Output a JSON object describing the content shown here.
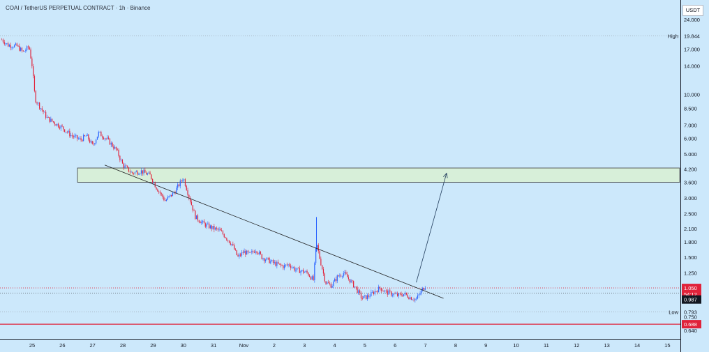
{
  "header": {
    "symbol": "COAI / TetherUS PERPETUAL CONTRACT",
    "sep": " · ",
    "interval": "1h",
    "exchange": "Binance"
  },
  "price_scale": {
    "unit": "USDT",
    "scale": "log"
  },
  "colors": {
    "background": "#cce8fb",
    "up": "#2962ff",
    "down": "#e0223a",
    "zone_fill": "#d8f0d2",
    "zone_stroke": "#3a3a3a",
    "trendline": "#1f1f1f",
    "current_price": "#e0223a",
    "low_level": "#e0223a"
  },
  "chart_data": {
    "type": "candlestick",
    "title": "",
    "xlabel": "",
    "ylabel": "",
    "x_ticks": [
      "25",
      "26",
      "27",
      "28",
      "29",
      "30",
      "31",
      "Nov",
      "2",
      "3",
      "4",
      "5",
      "6",
      "7",
      "8",
      "9",
      "10",
      "11",
      "12",
      "13",
      "14",
      "15"
    ],
    "y_ticks": [
      24.0,
      17.0,
      14.0,
      10.0,
      8.5,
      7.0,
      6.0,
      5.0,
      4.2,
      3.6,
      3.0,
      2.5,
      2.1,
      1.8,
      1.5,
      1.25,
      0.75,
      0.64
    ],
    "y_tick_labels": [
      "24.000",
      "17.000",
      "14.000",
      "10.000",
      "8.500",
      "7.000",
      "6.000",
      "5.000",
      "4.200",
      "3.600",
      "3.000",
      "2.500",
      "2.100",
      "1.800",
      "1.500",
      "1.250",
      "0.750",
      "0.640"
    ],
    "ylim": [
      0.6,
      27
    ],
    "y_scale": "log",
    "xlim": [
      24.1,
      15.9
    ],
    "grid": false,
    "high": {
      "label": "High",
      "value": 19.844,
      "value_label": "19.844"
    },
    "low": {
      "label": "Low",
      "value": 0.793,
      "value_label": "0.793"
    },
    "current_price": {
      "value": 1.05,
      "value_label": "1.050",
      "countdown": "54:12"
    },
    "level_987": {
      "value": 0.987,
      "value_label": "0.987"
    },
    "support_line": {
      "value": 0.688,
      "value_label": "0.688"
    },
    "zone": {
      "x_start": 26.5,
      "x_end": 15.9,
      "y_low": 3.6,
      "y_high": 4.25
    },
    "trendline": {
      "x1": 27.4,
      "y1": 4.4,
      "x2": 7.6,
      "y2": 0.93
    },
    "projection_arrow": {
      "x1": 6.7,
      "y1": 1.12,
      "x2": 7.7,
      "y2": 4.0
    },
    "price_path": [
      [
        24.0,
        19.0
      ],
      [
        24.2,
        17.8
      ],
      [
        24.5,
        17.6
      ],
      [
        24.7,
        16.4
      ],
      [
        24.9,
        17.5
      ],
      [
        25.0,
        14.0
      ],
      [
        25.1,
        9.5
      ],
      [
        25.3,
        8.5
      ],
      [
        25.5,
        7.6
      ],
      [
        25.8,
        7.1
      ],
      [
        26.0,
        6.8
      ],
      [
        26.3,
        6.2
      ],
      [
        26.6,
        5.9
      ],
      [
        26.8,
        6.2
      ],
      [
        27.0,
        5.5
      ],
      [
        27.2,
        6.4
      ],
      [
        27.5,
        5.9
      ],
      [
        27.8,
        5.2
      ],
      [
        28.0,
        4.4
      ],
      [
        28.3,
        4.0
      ],
      [
        28.6,
        4.1
      ],
      [
        28.9,
        3.9
      ],
      [
        29.1,
        3.4
      ],
      [
        29.4,
        2.9
      ],
      [
        29.7,
        3.2
      ],
      [
        30.0,
        3.8
      ],
      [
        30.2,
        3.0
      ],
      [
        30.4,
        2.4
      ],
      [
        30.7,
        2.2
      ],
      [
        31.0,
        2.1
      ],
      [
        31.2,
        2.05
      ],
      [
        31.4,
        1.9
      ],
      [
        31.6,
        1.75
      ],
      [
        31.8,
        1.5
      ],
      [
        32.0,
        1.6
      ],
      [
        32.2,
        1.55
      ],
      [
        32.4,
        1.65
      ],
      [
        32.6,
        1.5
      ],
      [
        32.8,
        1.45
      ],
      [
        33.0,
        1.4
      ],
      [
        33.3,
        1.35
      ],
      [
        33.5,
        1.38
      ],
      [
        33.7,
        1.3
      ],
      [
        33.9,
        1.28
      ],
      [
        34.1,
        1.25
      ],
      [
        34.3,
        1.15
      ],
      [
        34.4,
        1.78
      ],
      [
        34.5,
        1.5
      ],
      [
        34.7,
        1.12
      ],
      [
        34.9,
        1.08
      ],
      [
        35.1,
        1.2
      ],
      [
        35.3,
        1.25
      ],
      [
        35.5,
        1.15
      ],
      [
        35.7,
        1.05
      ],
      [
        35.9,
        0.93
      ],
      [
        36.1,
        0.95
      ],
      [
        36.3,
        1.0
      ],
      [
        36.5,
        1.05
      ],
      [
        36.7,
        1.0
      ],
      [
        36.9,
        0.98
      ],
      [
        37.1,
        0.96
      ],
      [
        37.3,
        0.98
      ],
      [
        37.5,
        0.94
      ],
      [
        37.7,
        0.92
      ],
      [
        37.85,
        1.0
      ],
      [
        38.0,
        1.08
      ]
    ]
  }
}
